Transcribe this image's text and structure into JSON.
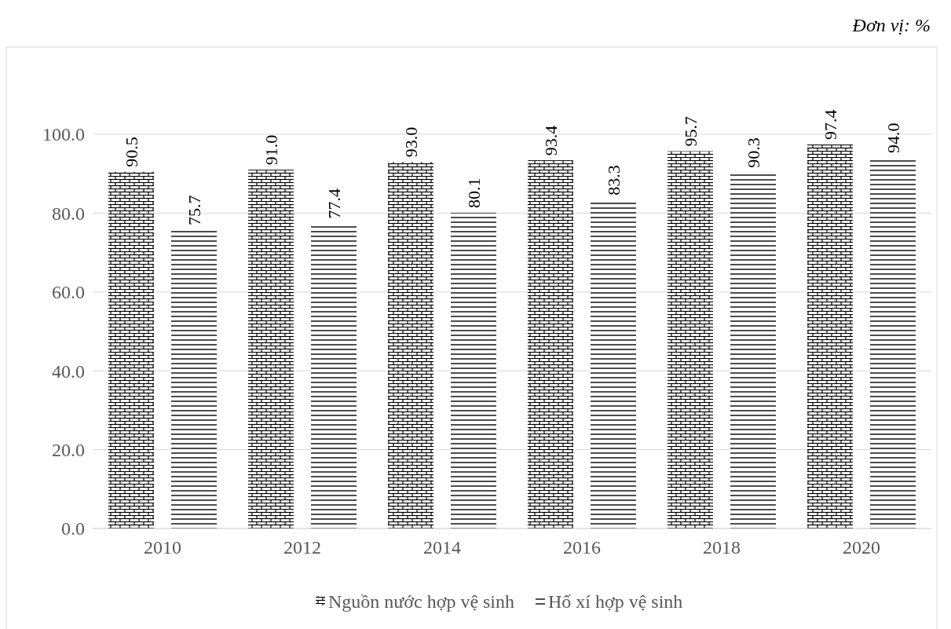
{
  "chart_data": {
    "type": "bar",
    "categories": [
      "2010",
      "2012",
      "2014",
      "2016",
      "2018",
      "2020"
    ],
    "series": [
      {
        "name": "Nguồn nước hợp vệ sinh",
        "color": "#000000",
        "values": [
          90.5,
          91.0,
          93.0,
          93.4,
          95.7,
          97.4
        ],
        "value_labels": [
          "90.5",
          "91.0",
          "93.0",
          "93.4",
          "95.7",
          "97.4"
        ]
      },
      {
        "name": "Hố xí hợp vệ sinh",
        "color": "#000000",
        "values": [
          75.7,
          77.4,
          80.1,
          83.3,
          90.3,
          94.0
        ],
        "value_labels": [
          "75.7",
          "77.4",
          "80.1",
          "83.3",
          "90.3",
          "94.0"
        ]
      }
    ],
    "ylim": [
      0,
      100
    ],
    "yticks": [
      {
        "value": 0,
        "label": "0.0"
      },
      {
        "value": 20,
        "label": "20.0"
      },
      {
        "value": 40,
        "label": "40.0"
      },
      {
        "value": 60,
        "label": "60.0"
      },
      {
        "value": 80,
        "label": "80.0"
      },
      {
        "value": 100,
        "label": "100.0"
      }
    ],
    "grid": "y",
    "legend": "bottom",
    "annotations": [
      "Đơn vị: %"
    ]
  }
}
